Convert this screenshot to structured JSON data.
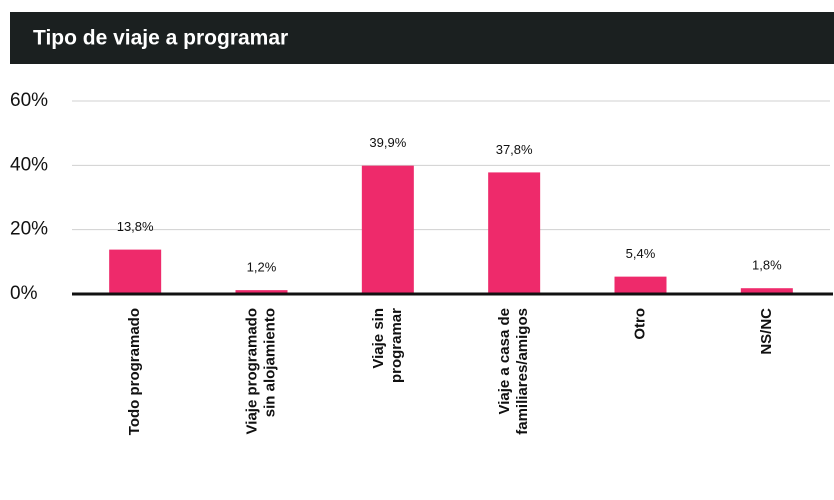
{
  "chart_data": {
    "type": "bar",
    "title": "Tipo de viaje a programar",
    "categories": [
      [
        "Todo programado"
      ],
      [
        "Viaje programado",
        "sin alojamiento"
      ],
      [
        "Viaje sin",
        "programar"
      ],
      [
        "Viaje a casa de",
        "familiares/amigos"
      ],
      [
        "Otro"
      ],
      [
        "NS/NC"
      ]
    ],
    "values": [
      13.8,
      1.2,
      39.9,
      37.8,
      5.4,
      1.8
    ],
    "value_labels": [
      "13,8%",
      "1,2%",
      "39,9%",
      "37,8%",
      "5,4%",
      "1,8%"
    ],
    "color": "#ee2a6b",
    "ylim": [
      0,
      60
    ],
    "yticks": [
      {
        "value": 0,
        "label": "0%"
      },
      {
        "value": 20,
        "label": "20%"
      },
      {
        "value": 40,
        "label": "40%"
      },
      {
        "value": 60,
        "label": "60%"
      }
    ],
    "grid": true
  }
}
